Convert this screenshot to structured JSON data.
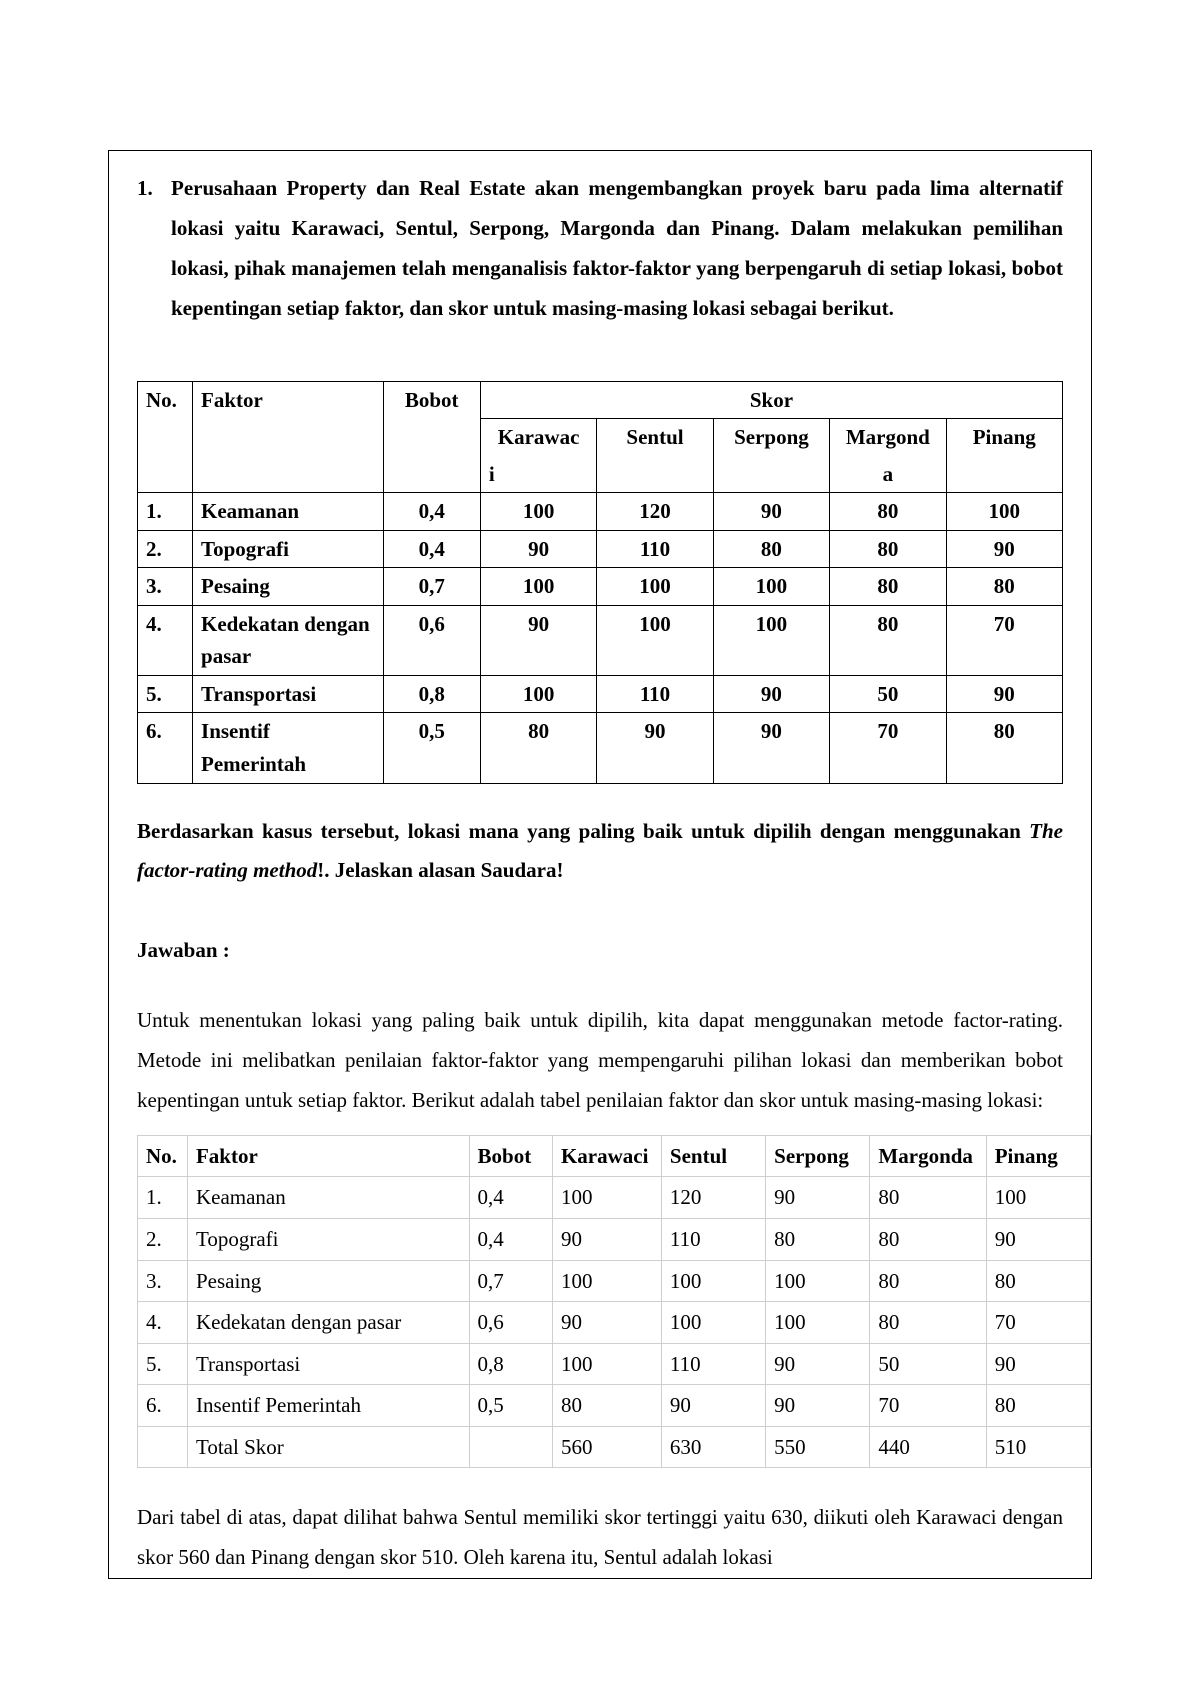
{
  "colors": {
    "page_bg": "#ffffff",
    "text": "#000000",
    "border_dark": "#000000",
    "border_light": "#cfcfcf"
  },
  "typography": {
    "family": "Times New Roman",
    "base_size_pt": 16,
    "line_height": 1.9
  },
  "question": {
    "number": "1.",
    "text": "Perusahaan Property dan Real Estate akan mengembangkan proyek baru pada lima alternatif lokasi yaitu  Karawaci, Sentul, Serpong, Margonda dan Pinang. Dalam melakukan pemilihan lokasi, pihak manajemen telah menganalisis faktor-faktor yang berpengaruh di setiap lokasi, bobot kepentingan setiap faktor, dan skor untuk masing-masing lokasi sebagai berikut."
  },
  "table1": {
    "headers": {
      "no": "No.",
      "faktor": "Faktor",
      "bobot": "Bobot",
      "skor": "Skor",
      "loc1_a": "Karawac",
      "loc1_b": "i",
      "loc2": "Sentul",
      "loc3": "Serpong",
      "loc4_a": "Margond",
      "loc4_b": "a",
      "loc5": "Pinang"
    },
    "rows": [
      {
        "no": "1.",
        "faktor": "Keamanan",
        "bobot": "0,4",
        "s": [
          "100",
          "120",
          "90",
          "80",
          "100"
        ]
      },
      {
        "no": "2.",
        "faktor": "Topografi",
        "bobot": "0,4",
        "s": [
          "90",
          "110",
          "80",
          "80",
          "90"
        ]
      },
      {
        "no": "3.",
        "faktor": "Pesaing",
        "bobot": "0,7",
        "s": [
          "100",
          "100",
          "100",
          "80",
          "80"
        ]
      },
      {
        "no": "4.",
        "faktor": "Kedekatan dengan pasar",
        "bobot": "0,6",
        "s": [
          "90",
          "100",
          "100",
          "80",
          "70"
        ]
      },
      {
        "no": "5.",
        "faktor": "Transportasi",
        "bobot": "0,8",
        "s": [
          "100",
          "110",
          "90",
          "50",
          "90"
        ]
      },
      {
        "no": "6.",
        "faktor": "Insentif Pemerintah",
        "bobot": "0,5",
        "s": [
          "80",
          "90",
          "90",
          "70",
          "80"
        ]
      }
    ]
  },
  "post_table_question": {
    "part1": "Berdasarkan kasus tersebut, lokasi mana yang paling baik untuk dipilih dengan menggunakan ",
    "italic": "The factor-rating method",
    "part2": "!. Jelaskan alasan Saudara!"
  },
  "jawaban_label": "Jawaban :",
  "answer_intro": "Untuk menentukan lokasi yang paling baik untuk dipilih, kita dapat menggunakan metode factor-rating. Metode ini melibatkan penilaian faktor-faktor yang mempengaruhi pilihan lokasi dan memberikan bobot kepentingan untuk setiap faktor. Berikut adalah tabel penilaian faktor dan skor untuk masing-masing lokasi:",
  "table2": {
    "headers": {
      "no": "No.",
      "faktor": "Faktor",
      "bobot": "Bobot",
      "loc1": "Karawaci",
      "loc2": "Sentul",
      "loc3": "Serpong",
      "loc4": "Margonda",
      "loc5": "Pinang"
    },
    "rows": [
      {
        "no": "1.",
        "faktor": "Keamanan",
        "bobot": "0,4",
        "s": [
          "100",
          "120",
          "90",
          "80",
          "100"
        ]
      },
      {
        "no": "2.",
        "faktor": "Topografi",
        "bobot": "0,4",
        "s": [
          "90",
          "110",
          "80",
          "80",
          "90"
        ]
      },
      {
        "no": "3.",
        "faktor": "Pesaing",
        "bobot": "0,7",
        "s": [
          "100",
          "100",
          "100",
          "80",
          "80"
        ]
      },
      {
        "no": "4.",
        "faktor": "Kedekatan dengan pasar",
        "bobot": "0,6",
        "s": [
          "90",
          "100",
          "100",
          "80",
          "70"
        ]
      },
      {
        "no": "5.",
        "faktor": "Transportasi",
        "bobot": "0,8",
        "s": [
          "100",
          "110",
          "90",
          "50",
          "90"
        ]
      },
      {
        "no": "6.",
        "faktor": "Insentif Pemerintah",
        "bobot": "0,5",
        "s": [
          "80",
          "90",
          "90",
          "70",
          "80"
        ]
      }
    ],
    "total_label": "Total Skor",
    "totals": [
      "560",
      "630",
      "550",
      "440",
      "510"
    ]
  },
  "conclusion": "Dari tabel di atas, dapat dilihat bahwa Sentul memiliki skor tertinggi yaitu 630, diikuti oleh Karawaci dengan skor 560 dan Pinang dengan skor 510. Oleh karena itu, Sentul adalah lokasi"
}
